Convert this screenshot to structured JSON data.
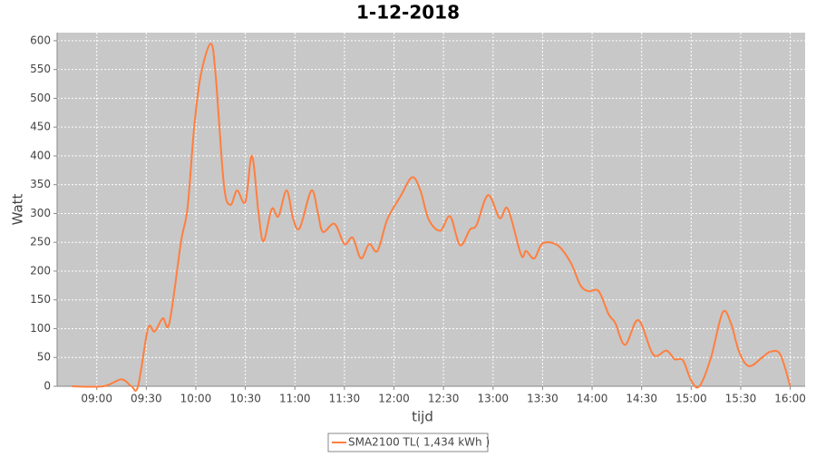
{
  "chart_data": {
    "type": "line",
    "title": "1-12-2018",
    "x_label": "tijd",
    "y_label": "Watt",
    "x": [
      525,
      544,
      555,
      561,
      565,
      571,
      575,
      580,
      584,
      591,
      595,
      599,
      603,
      609,
      612,
      617,
      621,
      625,
      630,
      634,
      638,
      641,
      646,
      650,
      655,
      659,
      663,
      670,
      674,
      677,
      684,
      690,
      695,
      700,
      705,
      710,
      716,
      724,
      731,
      736,
      741,
      748,
      754,
      760,
      766,
      770,
      777,
      784,
      789,
      797,
      800,
      805,
      810,
      819,
      827,
      833,
      838,
      844,
      850,
      854,
      860,
      868,
      877,
      885,
      890,
      895,
      900,
      905,
      912,
      919,
      924,
      929,
      935,
      943,
      948,
      954,
      960
    ],
    "series": [
      {
        "name": "SMA2100 TL( 1,434 kWh )",
        "color": "#ff7f3f",
        "values": [
          0,
          0,
          12,
          0,
          0,
          100,
          95,
          118,
          110,
          250,
          310,
          450,
          540,
          595,
          540,
          350,
          315,
          340,
          320,
          400,
          300,
          252,
          308,
          295,
          340,
          290,
          275,
          340,
          300,
          268,
          282,
          247,
          258,
          222,
          247,
          235,
          290,
          330,
          363,
          340,
          290,
          270,
          295,
          245,
          272,
          280,
          332,
          292,
          308,
          228,
          235,
          222,
          248,
          245,
          215,
          175,
          165,
          165,
          125,
          110,
          72,
          115,
          55,
          62,
          47,
          45,
          10,
          0,
          50,
          128,
          110,
          60,
          35,
          50,
          60,
          55,
          0
        ]
      }
    ],
    "xlim": [
      516,
      969
    ],
    "ylim": [
      0,
      614
    ],
    "xticks": [
      {
        "value": 540,
        "label": "09:00"
      },
      {
        "value": 570,
        "label": "09:30"
      },
      {
        "value": 600,
        "label": "10:00"
      },
      {
        "value": 630,
        "label": "10:30"
      },
      {
        "value": 660,
        "label": "11:00"
      },
      {
        "value": 690,
        "label": "11:30"
      },
      {
        "value": 720,
        "label": "12:00"
      },
      {
        "value": 750,
        "label": "12:30"
      },
      {
        "value": 780,
        "label": "13:00"
      },
      {
        "value": 810,
        "label": "13:30"
      },
      {
        "value": 840,
        "label": "14:00"
      },
      {
        "value": 870,
        "label": "14:30"
      },
      {
        "value": 900,
        "label": "15:00"
      },
      {
        "value": 930,
        "label": "15:30"
      },
      {
        "value": 960,
        "label": "16:00"
      }
    ],
    "yticks": [
      0,
      50,
      100,
      150,
      200,
      250,
      300,
      350,
      400,
      450,
      500,
      550,
      600
    ],
    "grid": true,
    "legend": "bottom"
  }
}
